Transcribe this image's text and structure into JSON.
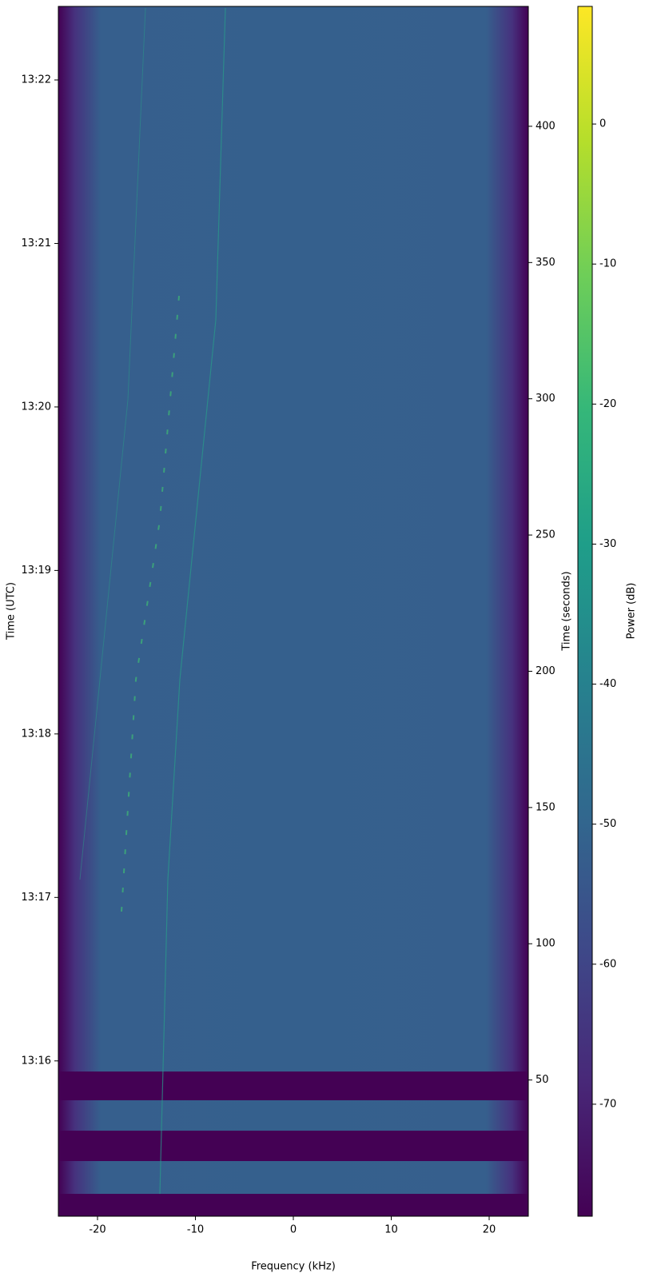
{
  "chart_data": {
    "type": "spectrogram",
    "xlabel": "Frequency (kHz)",
    "ylabel": "Time (UTC)",
    "y2label": "Time (seconds)",
    "colorbar_label": "Power (dB)",
    "colormap": "viridis",
    "xlim": [
      -24,
      24
    ],
    "xticks": [
      -20,
      -10,
      0,
      10,
      20
    ],
    "ylim": [
      0,
      444
    ],
    "yticks": [
      {
        "value": 57,
        "label": "13:16"
      },
      {
        "value": 117,
        "label": "13:17"
      },
      {
        "value": 177,
        "label": "13:18"
      },
      {
        "value": 237,
        "label": "13:19"
      },
      {
        "value": 297,
        "label": "13:20"
      },
      {
        "value": 357,
        "label": "13:21"
      },
      {
        "value": 417,
        "label": "13:22"
      }
    ],
    "y2lim": [
      0,
      444
    ],
    "y2ticks": [
      50,
      100,
      150,
      200,
      250,
      300,
      350,
      400
    ],
    "clim": [
      -78,
      8.4
    ],
    "cticks": [
      -70,
      -60,
      -50,
      -40,
      -30,
      -20,
      -10,
      0
    ]
  }
}
